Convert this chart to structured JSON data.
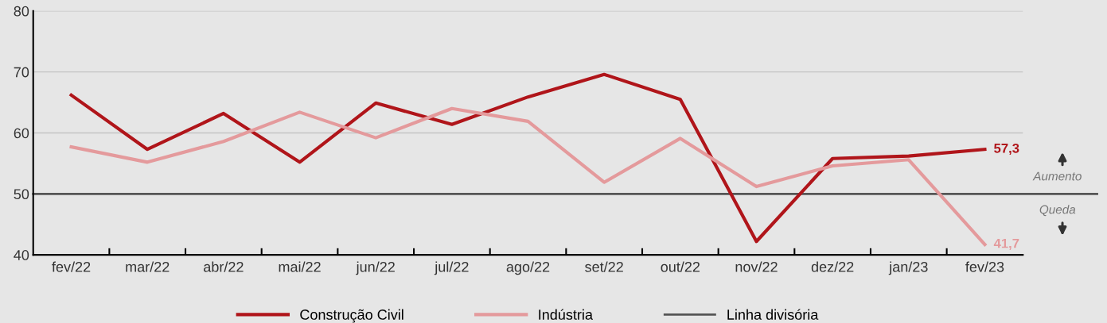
{
  "chart_data": {
    "type": "line",
    "categories": [
      "fev/22",
      "mar/22",
      "abr/22",
      "mai/22",
      "jun/22",
      "jul/22",
      "ago/22",
      "set/22",
      "out/22",
      "nov/22",
      "dez/22",
      "jan/23",
      "fev/23"
    ],
    "series": [
      {
        "name": "Construção Civil",
        "color": "#b0151a",
        "values": [
          66.2,
          57.3,
          63.2,
          55.2,
          64.9,
          61.4,
          65.9,
          69.6,
          65.5,
          42.2,
          55.8,
          56.2,
          57.3
        ],
        "value_labels": [
          null,
          null,
          null,
          null,
          null,
          null,
          null,
          null,
          null,
          null,
          null,
          null,
          "57,3"
        ]
      },
      {
        "name": "Indústria",
        "color": "#e49a9c",
        "values": [
          57.7,
          55.2,
          58.6,
          63.4,
          59.2,
          64.0,
          61.9,
          51.9,
          59.1,
          51.2,
          54.6,
          55.6,
          41.7
        ],
        "value_labels": [
          null,
          null,
          null,
          null,
          null,
          null,
          null,
          null,
          null,
          null,
          null,
          null,
          "41,7"
        ]
      }
    ],
    "ylim": [
      40,
      80
    ],
    "yticks": [
      40,
      50,
      60,
      70,
      80
    ],
    "grid": "y",
    "legend": "bottom",
    "marker": "none",
    "line_style": "solid",
    "ref_lines": [
      {
        "axis": "y",
        "value": 50,
        "label": "Linha divisória",
        "color": "#555555"
      }
    ],
    "annotations": [
      "Aumento",
      "Queda"
    ]
  }
}
